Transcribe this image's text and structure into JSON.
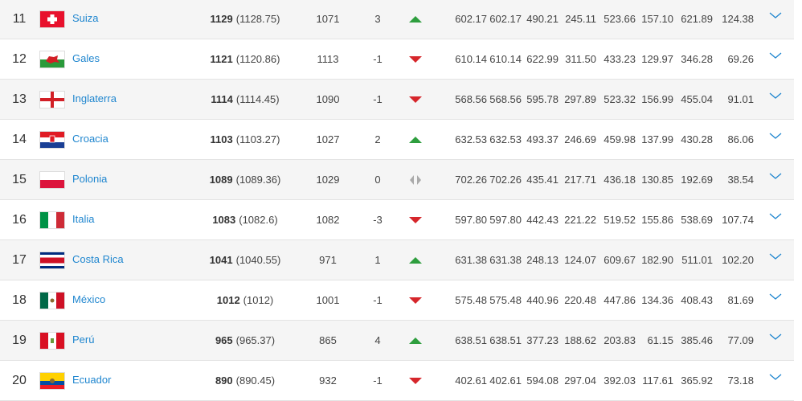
{
  "table": {
    "rows": [
      {
        "rank": "11",
        "country": "Suiza",
        "points": "1129",
        "points_exact": "(1128.75)",
        "previous": "1071",
        "change": "3",
        "trend": "up",
        "stats": [
          "602.17",
          "602.17",
          "490.21",
          "245.11",
          "523.66",
          "157.10",
          "621.89",
          "124.38"
        ]
      },
      {
        "rank": "12",
        "country": "Gales",
        "points": "1121",
        "points_exact": "(1120.86)",
        "previous": "1113",
        "change": "-1",
        "trend": "down",
        "stats": [
          "610.14",
          "610.14",
          "622.99",
          "311.50",
          "433.23",
          "129.97",
          "346.28",
          "69.26"
        ]
      },
      {
        "rank": "13",
        "country": "Inglaterra",
        "points": "1114",
        "points_exact": "(1114.45)",
        "previous": "1090",
        "change": "-1",
        "trend": "down",
        "stats": [
          "568.56",
          "568.56",
          "595.78",
          "297.89",
          "523.32",
          "156.99",
          "455.04",
          "91.01"
        ]
      },
      {
        "rank": "14",
        "country": "Croacia",
        "points": "1103",
        "points_exact": "(1103.27)",
        "previous": "1027",
        "change": "2",
        "trend": "up",
        "stats": [
          "632.53",
          "632.53",
          "493.37",
          "246.69",
          "459.98",
          "137.99",
          "430.28",
          "86.06"
        ]
      },
      {
        "rank": "15",
        "country": "Polonia",
        "points": "1089",
        "points_exact": "(1089.36)",
        "previous": "1029",
        "change": "0",
        "trend": "same",
        "stats": [
          "702.26",
          "702.26",
          "435.41",
          "217.71",
          "436.18",
          "130.85",
          "192.69",
          "38.54"
        ]
      },
      {
        "rank": "16",
        "country": "Italia",
        "points": "1083",
        "points_exact": "(1082.6)",
        "previous": "1082",
        "change": "-3",
        "trend": "down",
        "stats": [
          "597.80",
          "597.80",
          "442.43",
          "221.22",
          "519.52",
          "155.86",
          "538.69",
          "107.74"
        ]
      },
      {
        "rank": "17",
        "country": "Costa Rica",
        "points": "1041",
        "points_exact": "(1040.55)",
        "previous": "971",
        "change": "1",
        "trend": "up",
        "stats": [
          "631.38",
          "631.38",
          "248.13",
          "124.07",
          "609.67",
          "182.90",
          "511.01",
          "102.20"
        ]
      },
      {
        "rank": "18",
        "country": "México",
        "points": "1012",
        "points_exact": "(1012)",
        "previous": "1001",
        "change": "-1",
        "trend": "down",
        "stats": [
          "575.48",
          "575.48",
          "440.96",
          "220.48",
          "447.86",
          "134.36",
          "408.43",
          "81.69"
        ]
      },
      {
        "rank": "19",
        "country": "Perú",
        "points": "965",
        "points_exact": "(965.37)",
        "previous": "865",
        "change": "4",
        "trend": "up",
        "stats": [
          "638.51",
          "638.51",
          "377.23",
          "188.62",
          "203.83",
          "61.15",
          "385.46",
          "77.09"
        ]
      },
      {
        "rank": "20",
        "country": "Ecuador",
        "points": "890",
        "points_exact": "(890.45)",
        "previous": "932",
        "change": "-1",
        "trend": "down",
        "stats": [
          "402.61",
          "402.61",
          "594.08",
          "297.04",
          "392.03",
          "117.61",
          "365.92",
          "73.18"
        ]
      }
    ]
  }
}
